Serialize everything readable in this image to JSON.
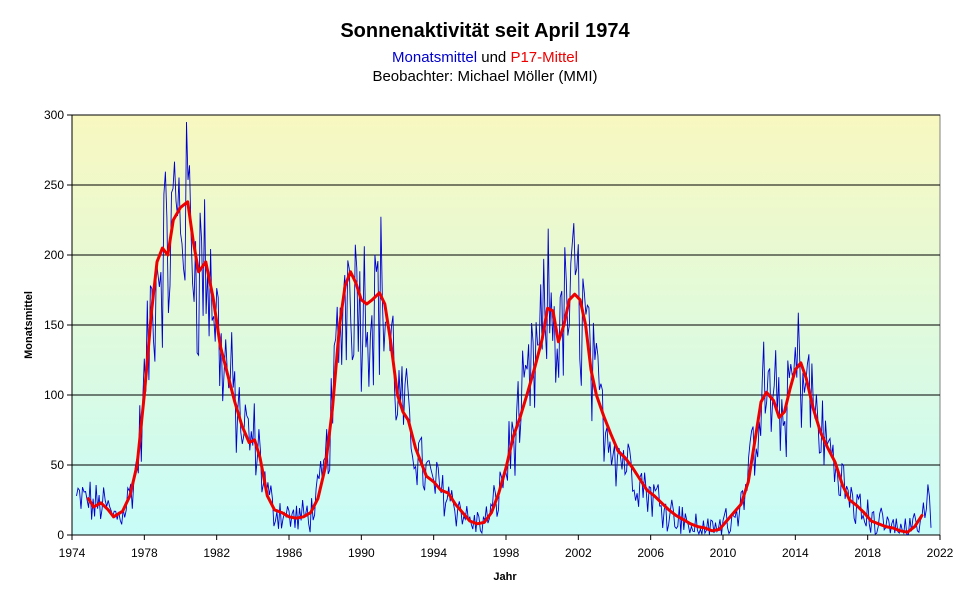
{
  "chart_data": {
    "type": "line",
    "title": "Sonnenaktivität seit April 1974",
    "subtitle": {
      "part1": "Monatsmittel",
      "part2": " und ",
      "part3": "P17-Mittel"
    },
    "observer": "Beobachter: Michael Möller (MMI)",
    "xlabel": "Jahr",
    "ylabel": "Monatsmittel",
    "xlim": [
      1974,
      2022
    ],
    "ylim": [
      0,
      300
    ],
    "xticks": [
      1974,
      1978,
      1982,
      1986,
      1990,
      1994,
      1998,
      2002,
      2006,
      2010,
      2014,
      2018,
      2022
    ],
    "yticks": [
      0,
      50,
      100,
      150,
      200,
      250,
      300
    ],
    "colors": {
      "monthly": "#0000cc",
      "smoothed": "#ee0000",
      "grid": "#000000",
      "bg_top": "#f8f8c0",
      "bg_bottom": "#c8fcf8"
    },
    "series": [
      {
        "name": "P17-Mittel",
        "x": [
          1974.9,
          1975.2,
          1975.6,
          1976.0,
          1976.3,
          1976.8,
          1977.2,
          1977.6,
          1978.0,
          1978.4,
          1978.7,
          1979.0,
          1979.3,
          1979.6,
          1980.0,
          1980.4,
          1980.7,
          1981.0,
          1981.4,
          1981.8,
          1982.2,
          1982.6,
          1983.0,
          1983.4,
          1983.8,
          1984.1,
          1984.4,
          1984.8,
          1985.2,
          1985.6,
          1986.0,
          1986.4,
          1986.8,
          1987.2,
          1987.6,
          1988.0,
          1988.4,
          1988.8,
          1989.1,
          1989.4,
          1989.7,
          1990.0,
          1990.3,
          1990.6,
          1991.0,
          1991.3,
          1991.6,
          1992.0,
          1992.3,
          1992.6,
          1993.0,
          1993.3,
          1993.6,
          1994.0,
          1994.4,
          1994.8,
          1995.2,
          1995.6,
          1996.0,
          1996.4,
          1996.8,
          1997.2,
          1997.6,
          1998.0,
          1998.4,
          1998.8,
          1999.2,
          1999.6,
          2000.0,
          2000.3,
          2000.6,
          2000.9,
          2001.2,
          2001.5,
          2001.8,
          2002.1,
          2002.4,
          2002.7,
          2003.0,
          2003.4,
          2003.8,
          2004.2,
          2004.6,
          2005.0,
          2005.4,
          2005.8,
          2006.2,
          2006.6,
          2007.0,
          2007.4,
          2007.8,
          2008.2,
          2008.6,
          2009.0,
          2009.4,
          2009.8,
          2010.2,
          2010.6,
          2011.0,
          2011.4,
          2011.8,
          2012.1,
          2012.4,
          2012.8,
          2013.1,
          2013.4,
          2013.7,
          2014.0,
          2014.3,
          2014.6,
          2015.0,
          2015.4,
          2015.8,
          2016.2,
          2016.6,
          2017.0,
          2017.4,
          2017.8,
          2018.2,
          2018.6,
          2019.0,
          2019.4,
          2019.8,
          2020.2,
          2020.6,
          2021.0
        ],
        "y": [
          26,
          20,
          23,
          18,
          13,
          17,
          28,
          50,
          100,
          160,
          195,
          205,
          200,
          225,
          234,
          238,
          210,
          188,
          195,
          170,
          135,
          115,
          95,
          78,
          66,
          68,
          55,
          28,
          18,
          16,
          13,
          12,
          13,
          16,
          26,
          48,
          90,
          150,
          178,
          188,
          180,
          168,
          165,
          168,
          173,
          165,
          140,
          100,
          88,
          82,
          62,
          52,
          42,
          38,
          32,
          30,
          22,
          16,
          10,
          8,
          9,
          16,
          30,
          48,
          70,
          85,
          102,
          120,
          140,
          162,
          160,
          138,
          150,
          168,
          172,
          168,
          150,
          118,
          100,
          85,
          72,
          60,
          55,
          48,
          40,
          32,
          28,
          23,
          18,
          14,
          11,
          8,
          6,
          5,
          3,
          4,
          10,
          16,
          22,
          38,
          70,
          95,
          102,
          96,
          84,
          88,
          104,
          118,
          123,
          112,
          90,
          73,
          62,
          52,
          36,
          25,
          21,
          16,
          10,
          8,
          6,
          5,
          3,
          2,
          6,
          14
        ]
      }
    ]
  }
}
